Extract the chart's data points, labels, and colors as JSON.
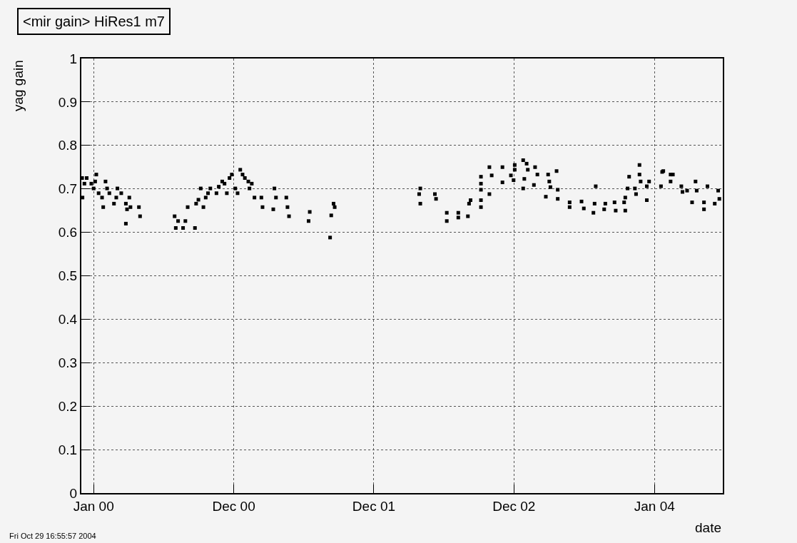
{
  "chart_data": {
    "type": "scatter",
    "title": "<mir gain> HiRes1 m7",
    "xlabel": "date",
    "ylabel": "yag gain",
    "annotations": [
      "Fri Oct 29 16:55:57 2004"
    ],
    "marker": "square",
    "grid": true,
    "color": "#000000",
    "xlim": [
      "1999-11-30",
      "2004-06-27"
    ],
    "xticks": [
      {
        "value": "2000-01-01",
        "label": "Jan 00"
      },
      {
        "value": "2000-12-31",
        "label": "Dec 00"
      },
      {
        "value": "2001-12-31",
        "label": "Dec 01"
      },
      {
        "value": "2002-12-31",
        "label": "Dec 02"
      },
      {
        "value": "2004-01-01",
        "label": "Jan 04"
      }
    ],
    "ylim": [
      0,
      1
    ],
    "yticks": [
      0,
      0.1,
      0.2,
      0.3,
      0.4,
      0.5,
      0.6,
      0.7,
      0.8,
      0.9,
      1
    ],
    "x": [
      "1999-12-02",
      "1999-12-14",
      "1999-12-08",
      "1999-12-03",
      "1999-12-26",
      "2000-01-05",
      "2000-01-08",
      "2000-01-01",
      "2000-01-14",
      "2000-01-23",
      "2000-01-26",
      "2000-02-01",
      "2000-02-05",
      "2000-02-11",
      "2000-02-23",
      "2000-02-29",
      "2000-03-03",
      "2000-03-13",
      "2000-03-25",
      "2000-03-28",
      "2000-03-25",
      "2000-04-03",
      "2000-04-06",
      "2000-04-28",
      "2000-05-01",
      "2000-07-30",
      "2000-08-02",
      "2000-08-08",
      "2000-08-21",
      "2000-08-27",
      "2000-09-02",
      "2000-09-21",
      "2000-09-24",
      "2000-09-30",
      "2000-10-06",
      "2000-10-13",
      "2000-10-19",
      "2000-10-25",
      "2000-10-31",
      "2000-11-16",
      "2000-11-22",
      "2000-12-01",
      "2000-12-07",
      "2000-12-13",
      "2000-12-20",
      "2000-12-26",
      "2001-01-04",
      "2001-01-10",
      "2001-01-17",
      "2001-01-23",
      "2001-01-29",
      "2001-02-07",
      "2001-02-10",
      "2001-02-16",
      "2001-02-23",
      "2001-03-13",
      "2001-03-16",
      "2001-04-16",
      "2001-04-20",
      "2001-04-13",
      "2001-05-17",
      "2001-05-20",
      "2001-05-24",
      "2001-07-17",
      "2001-07-14",
      "2001-09-17",
      "2001-09-20",
      "2001-09-11",
      "2001-09-08",
      "2002-05-01",
      "2002-04-28",
      "2002-05-01",
      "2002-06-08",
      "2002-06-11",
      "2002-07-09",
      "2002-07-09",
      "2002-08-08",
      "2002-08-08",
      "2002-09-02",
      "2002-09-05",
      "2002-09-09",
      "2002-10-06",
      "2002-10-06",
      "2002-10-06",
      "2002-10-06",
      "2002-10-06",
      "2002-10-28",
      "2002-11-03",
      "2002-10-28",
      "2002-12-01",
      "2002-12-01",
      "2002-12-23",
      "2003-01-02",
      "2003-01-02",
      "2002-12-30",
      "2003-01-24",
      "2003-02-02",
      "2003-02-05",
      "2003-01-27",
      "2003-01-24",
      "2003-02-24",
      "2003-03-02",
      "2003-02-21",
      "2003-03-30",
      "2003-04-02",
      "2003-04-05",
      "2003-03-24",
      "2003-04-21",
      "2003-04-24",
      "2003-04-24",
      "2003-05-25",
      "2003-05-25",
      "2003-06-25",
      "2003-07-01",
      "2003-07-29",
      "2003-07-26",
      "2003-08-01",
      "2003-08-23",
      "2003-08-26",
      "2003-09-19",
      "2003-09-22",
      "2003-10-14",
      "2003-10-17",
      "2003-10-17",
      "2003-10-27",
      "2003-10-23",
      "2003-11-11",
      "2003-11-14",
      "2003-11-23",
      "2003-11-23",
      "2003-11-26",
      "2003-12-12",
      "2003-12-18",
      "2003-12-12",
      "2004-01-18",
      "2004-01-21",
      "2004-01-24",
      "2004-02-12",
      "2004-02-12",
      "2004-02-18",
      "2004-03-11",
      "2004-03-14",
      "2004-03-26",
      "2004-04-08",
      "2004-04-17",
      "2004-04-20",
      "2004-05-09",
      "2004-05-09",
      "2004-05-18",
      "2004-06-06",
      "2004-06-15",
      "2004-06-18"
    ],
    "values": [
      0.725,
      0.725,
      0.712,
      0.68,
      0.712,
      0.717,
      0.733,
      0.701,
      0.69,
      0.68,
      0.658,
      0.717,
      0.701,
      0.69,
      0.666,
      0.68,
      0.701,
      0.69,
      0.666,
      0.653,
      0.62,
      0.68,
      0.658,
      0.658,
      0.637,
      0.637,
      0.61,
      0.626,
      0.61,
      0.626,
      0.658,
      0.61,
      0.666,
      0.675,
      0.701,
      0.658,
      0.68,
      0.69,
      0.701,
      0.69,
      0.705,
      0.717,
      0.712,
      0.69,
      0.725,
      0.733,
      0.701,
      0.69,
      0.744,
      0.733,
      0.725,
      0.717,
      0.701,
      0.712,
      0.68,
      0.68,
      0.658,
      0.701,
      0.68,
      0.653,
      0.68,
      0.658,
      0.637,
      0.647,
      0.626,
      0.666,
      0.658,
      0.639,
      0.588,
      0.701,
      0.688,
      0.666,
      0.688,
      0.677,
      0.645,
      0.626,
      0.645,
      0.634,
      0.637,
      0.666,
      0.674,
      0.728,
      0.712,
      0.698,
      0.674,
      0.658,
      0.75,
      0.731,
      0.688,
      0.75,
      0.715,
      0.731,
      0.755,
      0.744,
      0.72,
      0.766,
      0.758,
      0.744,
      0.723,
      0.701,
      0.75,
      0.733,
      0.709,
      0.733,
      0.717,
      0.704,
      0.682,
      0.741,
      0.698,
      0.677,
      0.669,
      0.658,
      0.671,
      0.655,
      0.666,
      0.645,
      0.706,
      0.653,
      0.666,
      0.669,
      0.65,
      0.669,
      0.68,
      0.65,
      0.728,
      0.701,
      0.701,
      0.688,
      0.755,
      0.733,
      0.717,
      0.706,
      0.717,
      0.674,
      0.706,
      0.739,
      0.741,
      0.733,
      0.717,
      0.733,
      0.706,
      0.693,
      0.696,
      0.669,
      0.717,
      0.696,
      0.669,
      0.653,
      0.706,
      0.666,
      0.696,
      0.677
    ]
  }
}
